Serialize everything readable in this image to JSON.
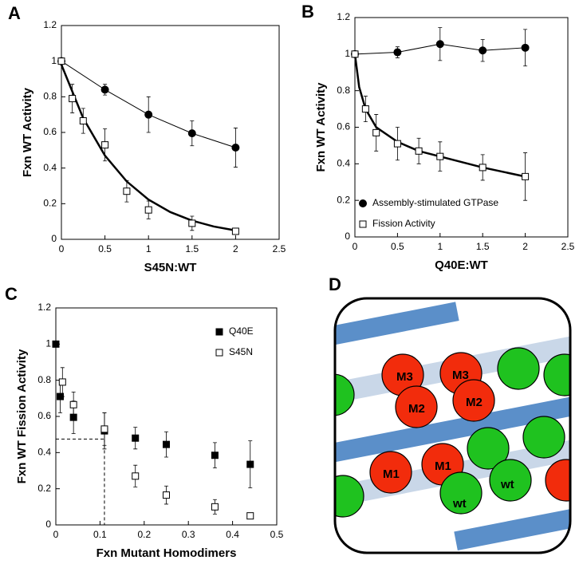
{
  "chart_data": [
    {
      "type": "line",
      "panel_label": "A",
      "xlabel": "S45N:WT",
      "ylabel": "Fxn WT Activity",
      "xlim": [
        0,
        2.5
      ],
      "xticks": [
        0,
        0.5,
        1,
        1.5,
        2,
        2.5
      ],
      "ylim": [
        0,
        1.2
      ],
      "yticks": [
        0,
        0.2,
        0.4,
        0.6,
        0.8,
        1,
        1.2
      ],
      "series": [
        {
          "marker": "circle",
          "filled": true,
          "line": "thin",
          "color": "#000000",
          "x": [
            0,
            0.5,
            1,
            1.5,
            2
          ],
          "values": [
            1,
            0.84,
            0.7,
            0.595,
            0.515
          ],
          "errors": [
            0,
            0.03,
            0.1,
            0.07,
            0.11
          ]
        },
        {
          "marker": "square",
          "filled": false,
          "color": "#000000",
          "x": [
            0,
            0.125,
            0.25,
            0.5,
            0.75,
            1,
            1.5,
            2
          ],
          "values": [
            1,
            0.79,
            0.665,
            0.53,
            0.27,
            0.165,
            0.09,
            0.045
          ],
          "errors": [
            0,
            0.08,
            0.07,
            0.09,
            0.06,
            0.05,
            0.04,
            0.015
          ]
        },
        {
          "line": "thick",
          "color": "#000000",
          "x": [
            0,
            0.25,
            0.5,
            0.75,
            1,
            1.25,
            1.5,
            1.75,
            2
          ],
          "values": [
            0.98,
            0.68,
            0.47,
            0.325,
            0.223,
            0.153,
            0.105,
            0.072,
            0.05
          ]
        }
      ]
    },
    {
      "type": "line",
      "panel_label": "B",
      "xlabel": "Q40E:WT",
      "ylabel": "Fxn WT Activity",
      "legend": "lower left",
      "xlim": [
        0,
        2.5
      ],
      "xticks": [
        0,
        0.5,
        1,
        1.5,
        2,
        2.5
      ],
      "ylim": [
        0,
        1.2
      ],
      "yticks": [
        0,
        0.2,
        0.4,
        0.6,
        0.8,
        1,
        1.2
      ],
      "series": [
        {
          "name": "Assembly-stimulated GTPase",
          "marker": "circle",
          "filled": true,
          "line": "thin",
          "color": "#000000",
          "x": [
            0,
            0.5,
            1,
            1.5,
            2
          ],
          "values": [
            1,
            1.01,
            1.055,
            1.02,
            1.035
          ],
          "errors": [
            0.01,
            0.03,
            0.09,
            0.06,
            0.1
          ]
        },
        {
          "name": "Fission Activity",
          "marker": "square",
          "filled": false,
          "color": "#000000",
          "x": [
            0,
            0.125,
            0.25,
            0.5,
            0.75,
            1,
            1.5,
            2
          ],
          "values": [
            1,
            0.7,
            0.57,
            0.51,
            0.47,
            0.44,
            0.38,
            0.33
          ],
          "errors": [
            0,
            0.07,
            0.1,
            0.09,
            0.07,
            0.08,
            0.07,
            0.13
          ]
        },
        {
          "line": "thick",
          "color": "#000000",
          "x": [
            0,
            0.05,
            0.125,
            0.25,
            0.5,
            0.75,
            1,
            1.5,
            2
          ],
          "values": [
            1,
            0.82,
            0.7,
            0.6,
            0.52,
            0.47,
            0.44,
            0.38,
            0.33
          ]
        }
      ]
    },
    {
      "type": "scatter",
      "panel_label": "C",
      "xlabel": "Fxn Mutant Homodimers",
      "ylabel": "Fxn WT Fission Activity",
      "legend": "upper right",
      "xlim": [
        0,
        0.5
      ],
      "xticks": [
        0,
        0.1,
        0.2,
        0.3,
        0.4,
        0.5
      ],
      "ylim": [
        0,
        1.2
      ],
      "yticks": [
        0,
        0.2,
        0.4,
        0.6,
        0.8,
        1,
        1.2
      ],
      "reference_point": {
        "x": 0.11,
        "y": 0.475
      },
      "series": [
        {
          "name": "Q40E",
          "marker": "square",
          "filled": true,
          "color": "#000000",
          "x": [
            0,
            0.01,
            0.04,
            0.11,
            0.18,
            0.25,
            0.36,
            0.44
          ],
          "values": [
            1,
            0.71,
            0.595,
            0.52,
            0.48,
            0.445,
            0.385,
            0.335
          ],
          "errors": [
            0,
            0.09,
            0.09,
            0.1,
            0.06,
            0.07,
            0.07,
            0.13
          ]
        },
        {
          "name": "S45N",
          "marker": "square",
          "filled": false,
          "color": "#000000",
          "x": [
            0.015,
            0.04,
            0.11,
            0.18,
            0.25,
            0.36,
            0.44
          ],
          "values": [
            0.79,
            0.665,
            0.53,
            0.27,
            0.165,
            0.1,
            0.05
          ],
          "errors": [
            0.08,
            0.07,
            0.09,
            0.06,
            0.05,
            0.04,
            0.015
          ]
        }
      ]
    }
  ],
  "diagram": {
    "panel_label": "D",
    "labels": [
      "M3",
      "M2",
      "M3",
      "M2",
      "M1",
      "M1",
      "wt",
      "wt"
    ]
  }
}
